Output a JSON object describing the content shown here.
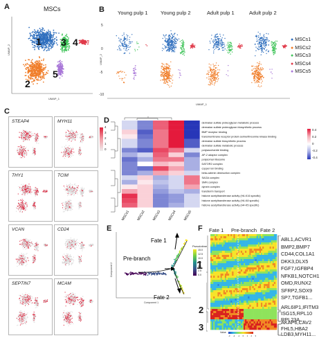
{
  "panels": {
    "a": {
      "letter": "A",
      "title": "MSCs",
      "cluster_labels": [
        "1",
        "2",
        "3",
        "4",
        "5"
      ],
      "axis_x": "UMAP_1",
      "axis_y": "UMAP_2",
      "colors": {
        "c1": "#2f6fbe",
        "c2": "#f07e2a",
        "c3": "#40c45a",
        "c4": "#e03a4a",
        "c5": "#a978d8"
      }
    },
    "b": {
      "letter": "B",
      "titles": [
        "Young pulp 1",
        "Young pulp 2",
        "Adult pulp 1",
        "Adult pulp 2"
      ],
      "axis_x": "UMAP_1",
      "axis_y": "UMAP_2",
      "y_ticks": [
        "5",
        "0",
        "-5",
        "-10"
      ],
      "legend": [
        "MSCs1",
        "MSCs2",
        "MSCs3",
        "MSCs4",
        "MSCs5"
      ]
    },
    "c": {
      "letter": "C",
      "genes": [
        "STEAP4",
        "MYH11",
        "THY1",
        "TCIM",
        "VCAN",
        "CD24",
        "SEPTIN7",
        "MCAM"
      ],
      "scale_ticks": [
        "4",
        "3",
        "2",
        "1",
        "0"
      ]
    },
    "d": {
      "letter": "D",
      "columns": [
        "MSCs1",
        "MSCs2",
        "MSCs3",
        "MSCs4",
        "MSCs5"
      ],
      "rows": [
        "dermatan sulfate proteoglycan metabolic process",
        "dermatan sulfate proteoglycan biosynthetic process",
        "BMP receptor binding",
        "transmembrane receptor protein serine/threonine kinase binding",
        "dermatan sulfate biosynthetic process",
        "dermatan sulfate metabolic process",
        "polysaccharide binding",
        "AP-2 adaptor complex",
        "polysomal ribosome",
        "DATOR2 complex",
        "copper ion binding",
        "beta-catenin destruction complex",
        "SAGA complex",
        "SMN complex",
        "dynein complex",
        "transferrin transport",
        "histone acetyltransferase activity (H4-K16 specific)",
        "histone acetyltransferase activity (H4-K8 specific)",
        "histone acetyltransferase activity (H4-K5 specific)"
      ],
      "values": [
        [
          -0.1,
          -0.3,
          0.35,
          0.55,
          -0.5
        ],
        [
          -0.1,
          -0.3,
          0.35,
          0.55,
          -0.5
        ],
        [
          0.1,
          -0.4,
          0.3,
          0.55,
          -0.5
        ],
        [
          0.05,
          -0.35,
          0.3,
          0.5,
          -0.5
        ],
        [
          -0.1,
          -0.3,
          0.3,
          0.5,
          -0.4
        ],
        [
          -0.1,
          -0.3,
          0.3,
          0.5,
          -0.4
        ],
        [
          -0.3,
          -0.4,
          0.4,
          0.3,
          -0.1
        ],
        [
          -0.2,
          -0.1,
          0.35,
          0.1,
          -0.3
        ],
        [
          -0.35,
          -0.2,
          0.3,
          0.3,
          -0.2
        ],
        [
          -0.3,
          0.0,
          0.15,
          0.1,
          -0.2
        ],
        [
          -0.3,
          -0.35,
          0.4,
          0.2,
          -0.2
        ],
        [
          -0.3,
          -0.2,
          0.2,
          0.1,
          -0.1
        ],
        [
          -0.1,
          0.1,
          -0.2,
          -0.1,
          0.3
        ],
        [
          -0.2,
          0.05,
          -0.15,
          -0.1,
          0.3
        ],
        [
          0.05,
          0.1,
          -0.2,
          -0.1,
          0.2
        ],
        [
          0.2,
          0.1,
          -0.25,
          -0.15,
          -0.2
        ],
        [
          0.45,
          0.1,
          -0.3,
          -0.25,
          -0.1
        ],
        [
          0.4,
          0.1,
          -0.3,
          -0.25,
          -0.1
        ],
        [
          0.35,
          0.1,
          -0.3,
          -0.2,
          -0.1
        ]
      ],
      "scale_ticks": [
        "0.4",
        "0.2",
        "0",
        "-0.2",
        "-0.4"
      ],
      "color_high": "#e41a3c",
      "color_low": "#2736b8"
    },
    "e": {
      "letter": "E",
      "labels": [
        "Fate 1",
        "Pre-branch",
        "Fate 2"
      ],
      "axis_x": "Component 1",
      "axis_y": "Component 2",
      "legend_title": "Pseudotime",
      "legend_ticks": [
        "15.0",
        "12.5",
        "10.0",
        "7.5",
        "5.0",
        "2.5",
        "0.0"
      ]
    },
    "f": {
      "letter": "F",
      "top_labels": [
        "Fate 1",
        "Pre-branch",
        "Fate 2"
      ],
      "cluster_labels": [
        "1",
        "2",
        "3"
      ],
      "gene_lines_1": [
        "ABL1,ACVR1",
        "BMP2,BMP7",
        "CD44,COL1A1",
        "DKK3,DLX5",
        "FGF7,IGFBP4",
        "NFKB1,NOTCH1",
        "OMD,RUNX2",
        "SFRP2,SOX9",
        "SP7,TGFB1..."
      ],
      "gene_lines_2": [
        "ARL6IP1,IFITM3",
        "ISG15,RPL10",
        "RPL23A..."
      ],
      "gene_lines_3": [
        "AKAP6,CAV2",
        "FHL5,HBA2",
        "LDB3,MYH11..."
      ],
      "scale_title": "Value",
      "scale_ticks": [
        "-3",
        "-2",
        "-1",
        "0",
        "1",
        "2",
        "3"
      ]
    }
  }
}
